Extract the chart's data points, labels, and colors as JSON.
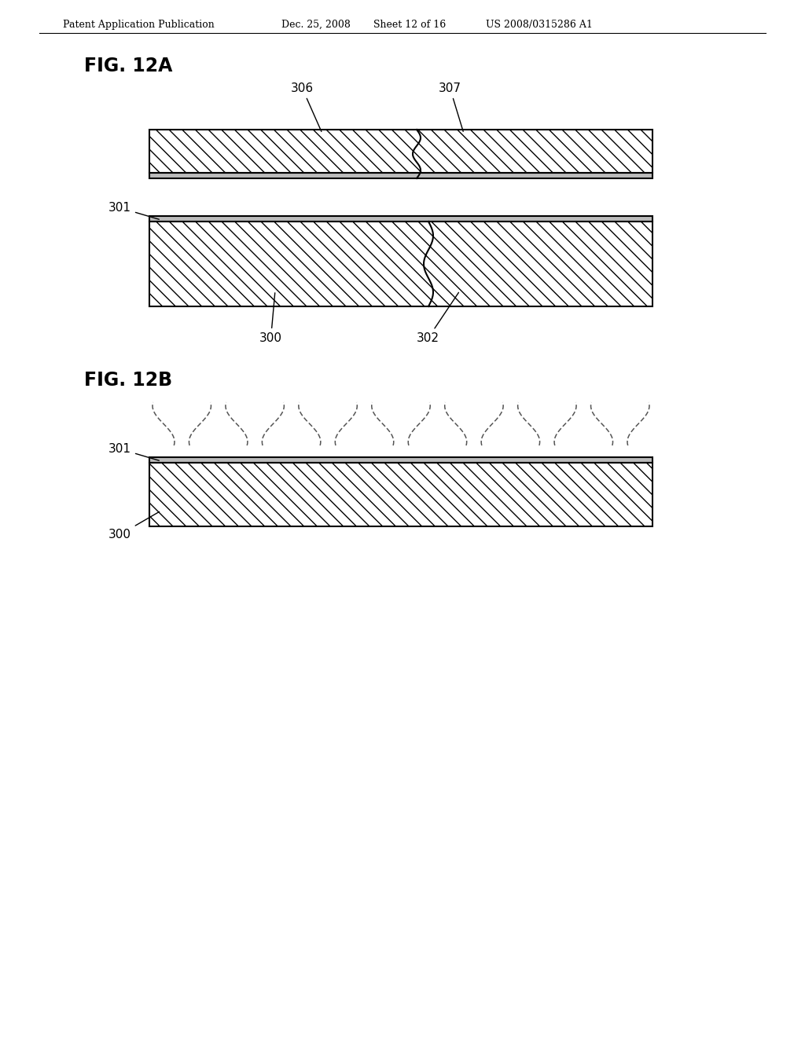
{
  "bg_color": "#ffffff",
  "header_text": "Patent Application Publication",
  "header_date": "Dec. 25, 2008",
  "header_sheet": "Sheet 12 of 16",
  "header_patent": "US 2008/0315286 A1",
  "fig_12a_label": "FIG. 12A",
  "fig_12b_label": "FIG. 12B",
  "label_color": "#000000",
  "line_color": "#000000",
  "thin_layer_color": "#bbbbbb",
  "hatch_pattern": "\\\\"
}
